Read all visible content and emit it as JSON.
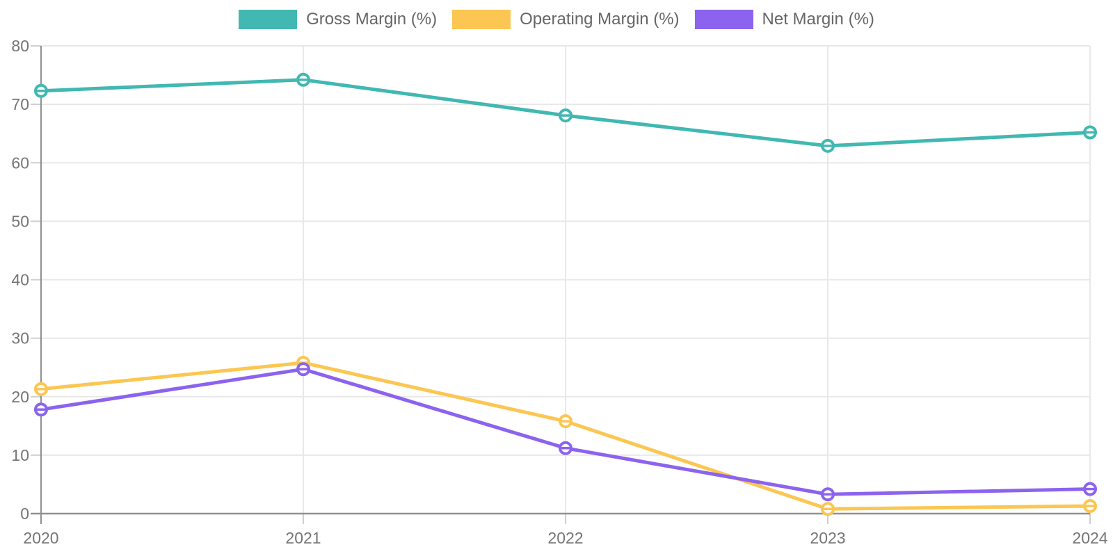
{
  "chart_data": {
    "type": "line",
    "title": "",
    "xlabel": "",
    "ylabel": "",
    "x": [
      "2020",
      "2021",
      "2022",
      "2023",
      "2024"
    ],
    "series": [
      {
        "name": "Gross Margin (%)",
        "color": "#41b8b1",
        "values": [
          72.3,
          74.2,
          68.1,
          62.9,
          65.2
        ]
      },
      {
        "name": "Operating Margin (%)",
        "color": "#fcc652",
        "values": [
          21.3,
          25.8,
          15.8,
          0.8,
          1.3
        ]
      },
      {
        "name": "Net Margin (%)",
        "color": "#8b63ee",
        "values": [
          17.8,
          24.7,
          11.2,
          3.3,
          4.2
        ]
      }
    ],
    "ylim": [
      0,
      80
    ],
    "yticks": [
      0,
      10,
      20,
      30,
      40,
      50,
      60,
      70,
      80
    ],
    "grid": true,
    "legend_position": "top-center",
    "marker_style": "open-circle-with-dash",
    "background": "#ffffff"
  },
  "style_colors": {
    "gridline": "#e8e8e8",
    "axis_line": "#909090",
    "tick_stub": "#cfcfcf",
    "tick_label": "#757575",
    "legend_text": "#666666",
    "marker_fill": "#ffffff"
  }
}
